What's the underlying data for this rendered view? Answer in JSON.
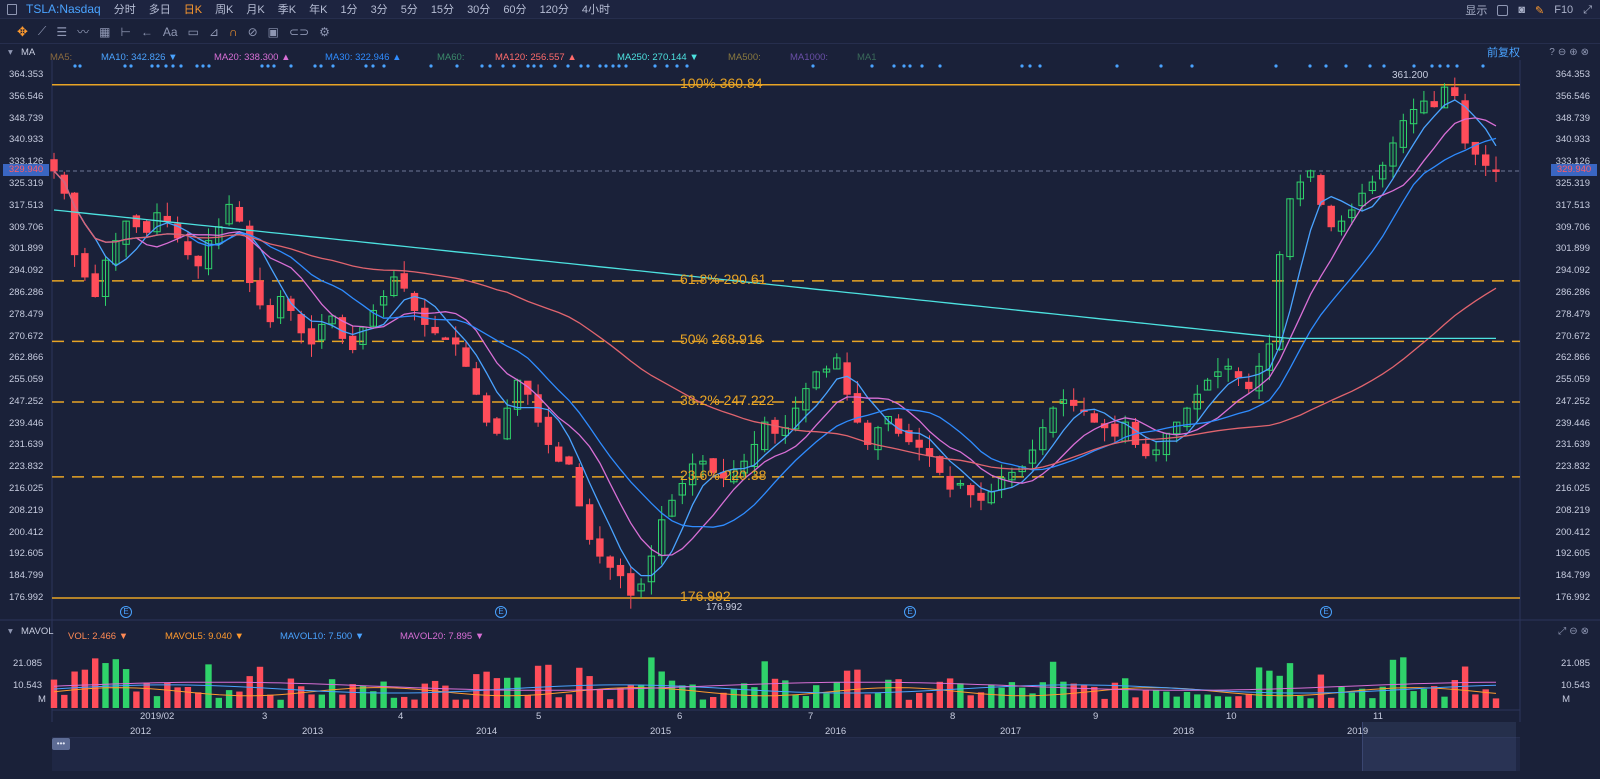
{
  "topbar": {
    "symbol": "TSLA:Nasdaq",
    "timeframes": [
      "分时",
      "多日",
      "日K",
      "周K",
      "月K",
      "季K",
      "年K",
      "1分",
      "3分",
      "5分",
      "15分",
      "30分",
      "60分",
      "120分",
      "4小时"
    ],
    "active_timeframe": "日K",
    "display_label": "显示",
    "f10_label": "F10"
  },
  "toolbar": {
    "aa_label": "Aa"
  },
  "ma_row": {
    "label": "MA",
    "items": [
      {
        "text": "MA5:",
        "color": "#8a6a3f"
      },
      {
        "text": "MA10: 342.826 ▼",
        "color": "#4aa3ff"
      },
      {
        "text": "MA20: 338.300 ▲",
        "color": "#d86fd6"
      },
      {
        "text": "MA30: 322.946 ▲",
        "color": "#2f8cff"
      },
      {
        "text": "MA60:",
        "color": "#3b8a6a"
      },
      {
        "text": "MA120: 256.557 ▲",
        "color": "#ff6b6b"
      },
      {
        "text": "MA250: 270.144 ▼",
        "color": "#4de2e0"
      },
      {
        "text": "MA500:",
        "color": "#8a7a3f"
      },
      {
        "text": "MA1000:",
        "color": "#6a4fa8"
      },
      {
        "text": "MA1",
        "color": "#3a6a5a"
      }
    ],
    "adjust_label": "前复权"
  },
  "vol_row": {
    "label": "MAVOL",
    "items": [
      {
        "text": "VOL: 2.466 ▼",
        "color": "#ff8a55"
      },
      {
        "text": "MAVOL5: 9.040 ▼",
        "color": "#ff9a2e"
      },
      {
        "text": "MAVOL10: 7.500 ▼",
        "color": "#4aa3ff"
      },
      {
        "text": "MAVOL20: 7.895 ▼",
        "color": "#d86fd6"
      }
    ]
  },
  "current_price": "329.940",
  "chart_data": {
    "type": "candlestick",
    "price_axis_ticks": [
      "364.353",
      "356.546",
      "348.739",
      "340.933",
      "333.126",
      "325.319",
      "317.513",
      "309.706",
      "301.899",
      "294.092",
      "286.286",
      "278.479",
      "270.672",
      "262.866",
      "255.059",
      "247.252",
      "239.446",
      "231.639",
      "223.832",
      "216.025",
      "208.219",
      "200.412",
      "192.605",
      "184.799",
      "176.992"
    ],
    "price_ylim": [
      176.992,
      364.353
    ],
    "fibonacci_levels": [
      {
        "label": "100% 360.84",
        "value": 360.84
      },
      {
        "label": "61.8% 290.61",
        "value": 290.61
      },
      {
        "label": "50% 268.916",
        "value": 268.916
      },
      {
        "label": "38.2% 247.222",
        "value": 247.222
      },
      {
        "label": "23.6% 220.38",
        "value": 220.38
      },
      {
        "label": "176.992",
        "value": 176.992
      }
    ],
    "marked_high": "361.200",
    "marked_low": "176.992",
    "x_month_labels": [
      "2019/02",
      "3",
      "4",
      "5",
      "6",
      "7",
      "8",
      "9",
      "10",
      "11"
    ],
    "x_year_labels": [
      "2012",
      "2013",
      "2014",
      "2015",
      "2016",
      "2017",
      "2018",
      "2019"
    ],
    "volume_axis_ticks": [
      "21.085",
      "10.543",
      "M"
    ],
    "close_path": [
      330,
      322,
      300,
      292,
      285,
      298,
      305,
      312,
      310,
      308,
      315,
      312,
      306,
      300,
      296,
      305,
      310,
      318,
      312,
      290,
      282,
      276,
      285,
      280,
      272,
      268,
      275,
      278,
      270,
      266,
      274,
      280,
      285,
      292,
      288,
      280,
      275,
      272,
      270,
      268,
      260,
      250,
      240,
      236,
      245,
      255,
      250,
      240,
      232,
      226,
      225,
      210,
      198,
      192,
      188,
      185,
      178,
      182,
      192,
      205,
      212,
      218,
      225,
      226,
      222,
      220,
      223,
      226,
      232,
      240,
      236,
      238,
      245,
      252,
      258,
      259,
      263,
      250,
      240,
      232,
      238,
      242,
      236,
      233,
      231,
      228,
      222,
      216,
      218,
      214,
      212,
      215,
      220,
      222,
      224,
      230,
      238,
      245,
      248,
      246,
      244,
      240,
      238,
      235,
      240,
      232,
      228,
      230,
      236,
      240,
      245,
      250,
      255,
      258,
      260,
      256,
      252,
      260,
      268,
      300,
      320,
      326,
      330,
      318,
      310,
      312,
      316,
      322,
      326,
      332,
      340,
      348,
      352,
      355,
      353,
      360,
      357,
      340,
      336,
      332,
      330
    ],
    "ma10_series_value": 342.826,
    "ma20_series_value": 338.3,
    "ma30_series_value": 322.946,
    "ma120_series_value": 256.557,
    "ma250_series_value": 270.144
  }
}
